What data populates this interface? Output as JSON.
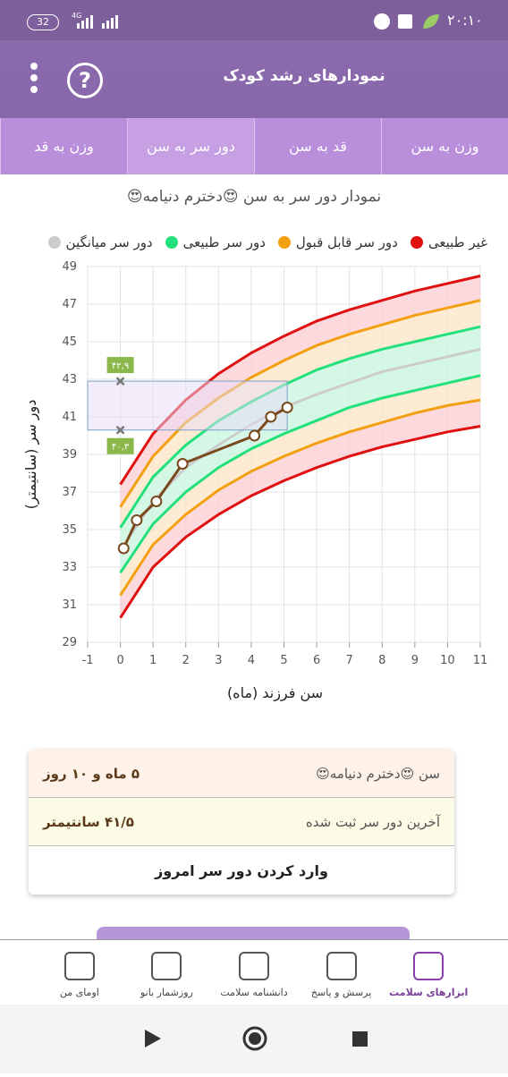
{
  "status_bar": {
    "time": "۲۰:۱۰",
    "battery": "32",
    "network": "4G"
  },
  "header": {
    "title": "نمودارهای رشد کودک",
    "help": "?"
  },
  "tabs": {
    "items": [
      "وزن به سن",
      "قد به سن",
      "دور سر به سن",
      "وزن به قد"
    ],
    "selected": 2
  },
  "chart_data": {
    "type": "line",
    "title": "نمودار دور سر به سن 😍دخترم دنیامه😍",
    "x_label": "سن فرزند (ماه)",
    "y_label": "دور سر (سانتیمتر)",
    "legend": [
      {
        "name": "غیر طبیعی",
        "color": "#e01010"
      },
      {
        "name": "دور سر قابل قبول",
        "color": "#f2a010"
      },
      {
        "name": "دور سر طبیعی",
        "color": "#22e07a"
      },
      {
        "name": "دور سر میانگین",
        "color": "#cccccc"
      }
    ],
    "xlim": [
      -1,
      11
    ],
    "xticks": [
      -1,
      0,
      1,
      2,
      3,
      4,
      5,
      6,
      7,
      8,
      9,
      10,
      11
    ],
    "ylim": [
      29,
      49
    ],
    "yticks": [
      29,
      31,
      33,
      35,
      37,
      39,
      41,
      43,
      45,
      47,
      49
    ],
    "grid": true,
    "x": [
      0,
      1,
      2,
      3,
      4,
      5,
      6,
      7,
      8,
      9,
      10,
      11
    ],
    "series": [
      {
        "color": "#e01010",
        "fill": "#fbd0d4",
        "values": [
          37.4,
          40.1,
          41.9,
          43.3,
          44.4,
          45.3,
          46.1,
          46.7,
          47.2,
          47.7,
          48.1,
          48.5
        ]
      },
      {
        "color": "#f2a010",
        "fill": "#fde6c8",
        "values": [
          36.2,
          38.9,
          40.7,
          42.0,
          43.1,
          44.0,
          44.8,
          45.4,
          45.9,
          46.4,
          46.8,
          47.2
        ]
      },
      {
        "color": "#22e07a",
        "fill": "#cbf6e0",
        "values": [
          35.1,
          37.8,
          39.5,
          40.8,
          41.8,
          42.7,
          43.5,
          44.1,
          44.6,
          45.0,
          45.4,
          45.8
        ]
      },
      {
        "color": "#cccccc",
        "fill": "#cbf6e0",
        "values": [
          33.9,
          36.5,
          38.3,
          39.5,
          40.6,
          41.5,
          42.2,
          42.8,
          43.4,
          43.8,
          44.2,
          44.6
        ]
      },
      {
        "color": "#22e07a",
        "fill": "#fde6c8",
        "values": [
          32.7,
          35.3,
          37.0,
          38.3,
          39.3,
          40.1,
          40.8,
          41.5,
          42.0,
          42.4,
          42.8,
          43.2
        ]
      },
      {
        "color": "#f2a010",
        "fill": "#fbd0d4",
        "values": [
          31.5,
          34.2,
          35.8,
          37.1,
          38.1,
          38.9,
          39.6,
          40.2,
          40.7,
          41.2,
          41.6,
          41.9
        ]
      },
      {
        "color": "#e01010",
        "values": [
          30.3,
          33.0,
          34.6,
          35.8,
          36.8,
          37.6,
          38.3,
          38.9,
          39.4,
          39.8,
          40.2,
          40.5
        ]
      }
    ],
    "child": {
      "color": "#7a4a1e",
      "x": [
        0.1,
        0.5,
        1.1,
        1.9,
        4.1,
        4.6,
        5.1
      ],
      "values": [
        34.0,
        35.5,
        36.5,
        38.5,
        40.0,
        41.0,
        41.5
      ]
    },
    "range_box": {
      "high": 42.9,
      "low": 40.3,
      "high_label": "۴۲,۹",
      "low_label": "۴۰,۳",
      "color": "#8ab84a"
    }
  },
  "info_card": {
    "rows": [
      [
        "سن 😍دخترم دنیامه😍",
        "۵ ماه و ۱۰ روز"
      ],
      [
        "آخرین دور سر ثبت شده",
        "۴۱/۵ سانتیمتر"
      ]
    ],
    "button": "وارد کردن دور سر امروز"
  },
  "bottom_nav": {
    "items": [
      "ابزارهای سلامت",
      "پرسش و پاسخ",
      "دانشنامه سلامت",
      "روزشمار بانو",
      "اومای من"
    ],
    "active": 0
  }
}
